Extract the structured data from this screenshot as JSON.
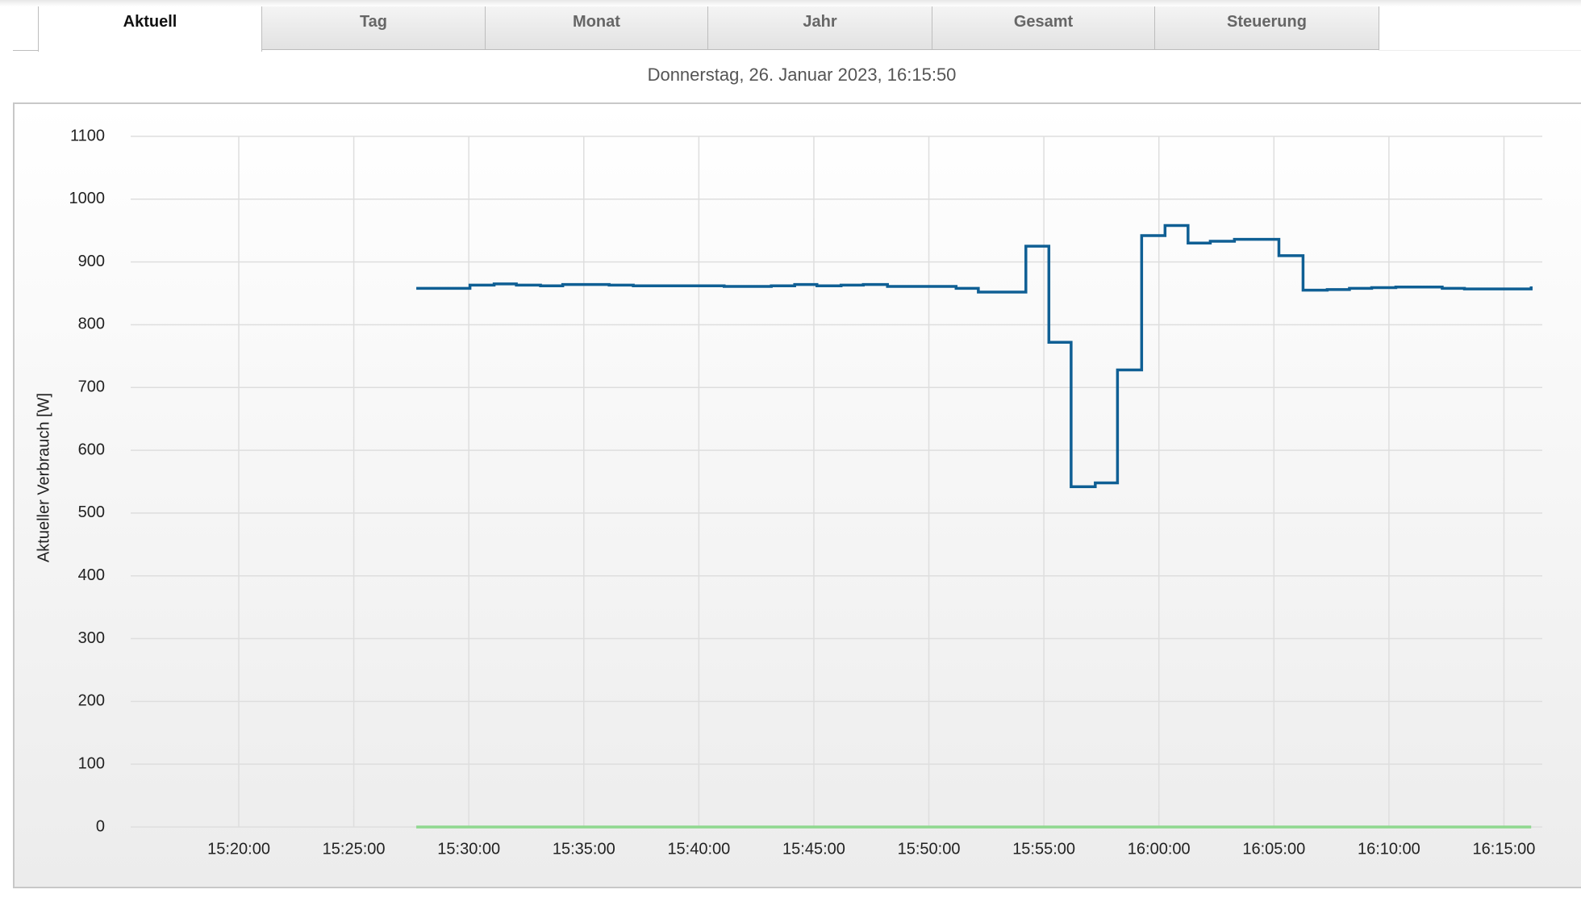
{
  "tabs": [
    "Aktuell",
    "Tag",
    "Monat",
    "Jahr",
    "Gesamt",
    "Steuerung"
  ],
  "date": "Donnerstag, 26. Januar 2023, 16:15:50",
  "chart_data": {
    "type": "line",
    "step": true,
    "ylabel": "Aktueller Verbrauch [W]",
    "xlim": [
      "15:15:18",
      "16:16:40"
    ],
    "xticks": [
      "15:20:00",
      "15:25:00",
      "15:30:00",
      "15:35:00",
      "15:40:00",
      "15:45:00",
      "15:50:00",
      "15:55:00",
      "16:00:00",
      "16:05:00",
      "16:10:00",
      "16:15:00"
    ],
    "ylim": [
      0,
      1100
    ],
    "yticks": [
      0,
      100,
      200,
      300,
      400,
      500,
      600,
      700,
      800,
      900,
      1000,
      1100
    ],
    "grid": true,
    "series": [
      {
        "color": "#0f5f94",
        "x": [
          "15:27:43",
          "15:30:03",
          "15:31:06",
          "15:32:04",
          "15:33:07",
          "15:34:05",
          "15:36:06",
          "15:37:09",
          "15:41:06",
          "15:43:09",
          "15:44:10",
          "15:45:08",
          "15:46:11",
          "15:47:09",
          "15:48:12",
          "15:51:11",
          "15:52:09",
          "15:54:13",
          "15:55:13",
          "15:56:11",
          "15:57:14",
          "15:58:12",
          "15:59:15",
          "16:00:16",
          "16:01:16",
          "16:02:14",
          "16:03:17",
          "16:05:13",
          "16:06:16",
          "16:07:19",
          "16:08:17",
          "16:09:15",
          "16:10:18",
          "16:12:19",
          "16:13:17",
          "16:16:11"
        ],
        "values": [
          858,
          863,
          865,
          863,
          862,
          864,
          863,
          862,
          861,
          862,
          864,
          862,
          863,
          864,
          861,
          858,
          852,
          925,
          772,
          542,
          548,
          728,
          942,
          958,
          930,
          933,
          936,
          910,
          855,
          856,
          858,
          859,
          860,
          858,
          857,
          861
        ]
      },
      {
        "color": "#8fd88f",
        "x": [
          "15:27:43",
          "16:16:11"
        ],
        "values": [
          0,
          0
        ]
      }
    ]
  }
}
